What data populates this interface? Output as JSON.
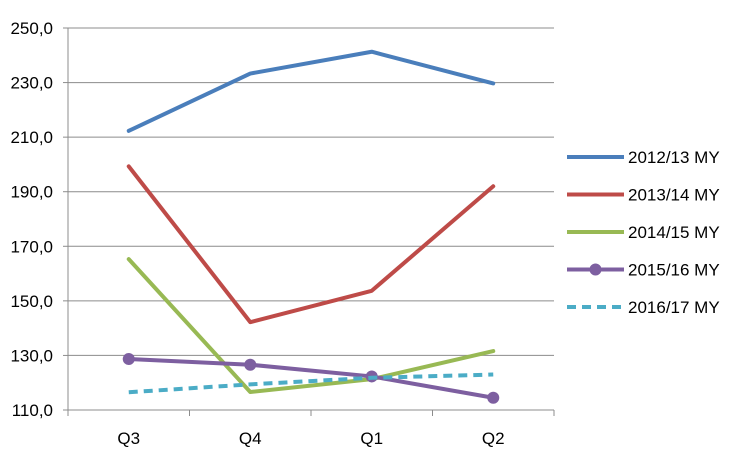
{
  "chart_data": {
    "type": "line",
    "categories": [
      "Q3",
      "Q4",
      "Q1",
      "Q2"
    ],
    "ylim": [
      110,
      250
    ],
    "y_ticks": [
      110,
      130,
      150,
      170,
      190,
      210,
      230,
      250
    ],
    "y_tick_labels": [
      "110,0",
      "130,0",
      "150,0",
      "170,0",
      "190,0",
      "210,0",
      "230,0",
      "250,0"
    ],
    "grid": "horizontal",
    "legend_position": "right",
    "series": [
      {
        "name": "2012/13 MY",
        "values": [
          212.3,
          233.3,
          241.3,
          229.7
        ],
        "color": "#4a7ebb",
        "dash": "solid",
        "marker": "none"
      },
      {
        "name": "2013/14 MY",
        "values": [
          199.3,
          142.2,
          153.7,
          192.0
        ],
        "color": "#be4b48",
        "dash": "solid",
        "marker": "none"
      },
      {
        "name": "2014/15 MY",
        "values": [
          165.3,
          116.6,
          121.3,
          131.6
        ],
        "color": "#98b954",
        "dash": "solid",
        "marker": "none"
      },
      {
        "name": "2015/16 MY",
        "values": [
          128.7,
          126.6,
          122.3,
          114.5
        ],
        "color": "#7d5fa0",
        "dash": "solid",
        "marker": "circle"
      },
      {
        "name": "2016/17 MY",
        "values": [
          116.5,
          119.4,
          121.8,
          123.0
        ],
        "color": "#4bacc6",
        "dash": "dashed",
        "marker": "none"
      }
    ]
  }
}
